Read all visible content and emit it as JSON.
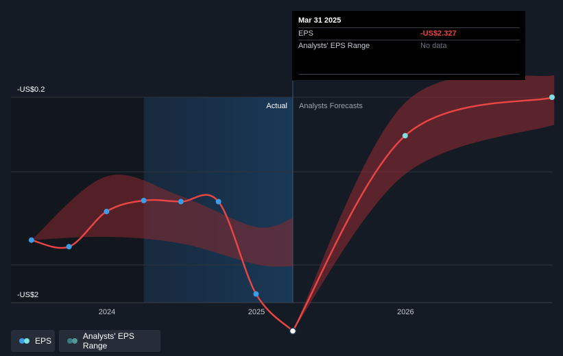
{
  "tooltip": {
    "date": "Mar 31 2025",
    "eps_label": "EPS",
    "eps_value": "-US$2.327",
    "range_label": "Analysts' EPS Range",
    "range_value": "No data"
  },
  "labels": {
    "actual": "Actual",
    "forecast": "Analysts Forecasts"
  },
  "legend": {
    "eps": "EPS",
    "range": "Analysts' EPS Range"
  },
  "colors": {
    "background": "#151b24",
    "eps_line": "#e84545",
    "eps_point": "#3b9de8",
    "forecast_point": "#7fe0e0",
    "range_band": "#8b2a30",
    "actual_region": "#1a3a5a",
    "legend_range_dot_1": "#3c7a8a",
    "legend_range_dot_2": "#4f9a92"
  },
  "chart_data": {
    "type": "line",
    "y_tick_labels": [
      "-US$0.2",
      "-US$2"
    ],
    "x_tick_labels": [
      "2024",
      "2025",
      "2026"
    ],
    "x_domain": [
      "2023-07-01",
      "2026-12-31"
    ],
    "y_range": [
      -2.0,
      -0.2
    ],
    "series": [
      {
        "name": "EPS",
        "x": [
          "2023-06-30",
          "2023-09-30",
          "2023-12-31",
          "2024-03-31",
          "2024-06-30",
          "2024-09-30",
          "2024-12-31",
          "2025-03-31"
        ],
        "values": [
          -1.5,
          -1.56,
          -1.24,
          -1.14,
          -1.15,
          -1.15,
          -1.99,
          -2.327
        ]
      },
      {
        "name": "EPS forecast",
        "x": [
          "2025-03-31",
          "2025-12-31",
          "2026-12-31"
        ],
        "values": [
          -2.327,
          -0.55,
          -0.2
        ]
      }
    ],
    "range_band_actual": {
      "x": [
        "2023-06-30",
        "2023-12-31",
        "2024-06-30",
        "2024-12-31",
        "2025-03-31"
      ],
      "upper": [
        -1.5,
        -0.92,
        -1.1,
        -1.38,
        -1.3
      ],
      "lower": [
        -1.5,
        -1.47,
        -1.53,
        -1.72,
        -1.74
      ]
    },
    "range_band_forecast": {
      "x": [
        "2025-03-31",
        "2025-12-31",
        "2026-12-31"
      ],
      "upper": [
        -2.327,
        -0.25,
        0.0
      ],
      "lower": [
        -2.327,
        -0.9,
        -0.45
      ]
    },
    "divider_date": "2025-03-31",
    "actual_region_start": "2024-03-31",
    "legend_position": "bottom-left",
    "grid": true
  }
}
